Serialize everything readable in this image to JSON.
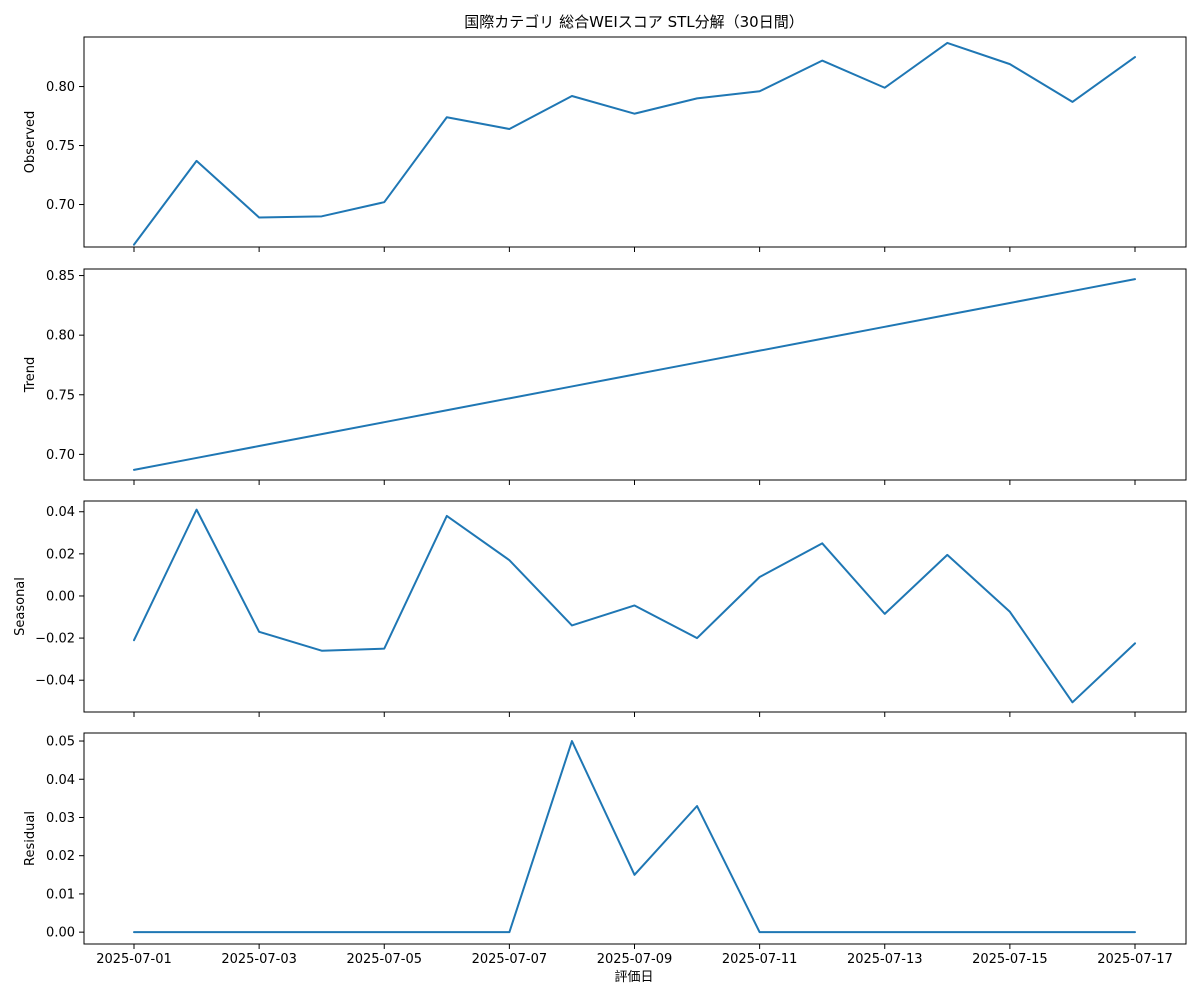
{
  "chart_data": {
    "type": "line",
    "title": "国際カテゴリ 総合WEIスコア STL分解（30日間）",
    "xlabel": "評価日",
    "x": [
      "2025-07-01",
      "2025-07-02",
      "2025-07-03",
      "2025-07-04",
      "2025-07-05",
      "2025-07-06",
      "2025-07-07",
      "2025-07-08",
      "2025-07-09",
      "2025-07-10",
      "2025-07-11",
      "2025-07-12",
      "2025-07-13",
      "2025-07-14",
      "2025-07-15",
      "2025-07-16",
      "2025-07-17"
    ],
    "x_ticks": [
      "2025-07-01",
      "2025-07-03",
      "2025-07-05",
      "2025-07-07",
      "2025-07-09",
      "2025-07-11",
      "2025-07-13",
      "2025-07-15",
      "2025-07-17"
    ],
    "color": "#1f77b4",
    "panels": [
      {
        "ylabel": "Observed",
        "ylim": [
          0.664,
          0.842
        ],
        "yticks": [
          0.7,
          0.75,
          0.8
        ],
        "ytick_labels": [
          "0.70",
          "0.75",
          "0.80"
        ],
        "values": [
          0.666,
          0.737,
          0.689,
          0.69,
          0.702,
          0.774,
          0.764,
          0.792,
          0.777,
          0.79,
          0.796,
          0.822,
          0.799,
          0.837,
          0.819,
          0.787,
          0.825
        ]
      },
      {
        "ylabel": "Trend",
        "ylim": [
          0.6785,
          0.8555
        ],
        "yticks": [
          0.7,
          0.75,
          0.8,
          0.85
        ],
        "ytick_labels": [
          "0.70",
          "0.75",
          "0.80",
          "0.85"
        ],
        "values": [
          0.687,
          0.697,
          0.707,
          0.717,
          0.727,
          0.737,
          0.747,
          0.757,
          0.767,
          0.777,
          0.787,
          0.797,
          0.807,
          0.817,
          0.827,
          0.837,
          0.847
        ]
      },
      {
        "ylabel": "Seasonal",
        "ylim": [
          -0.0551,
          0.0451
        ],
        "yticks": [
          -0.04,
          -0.02,
          0.0,
          0.02,
          0.04
        ],
        "ytick_labels": [
          "−0.04",
          "−0.02",
          "0.00",
          "0.02",
          "0.04"
        ],
        "values": [
          -0.021,
          0.041,
          -0.017,
          -0.026,
          -0.025,
          0.038,
          0.017,
          -0.014,
          -0.0045,
          -0.02,
          0.009,
          0.025,
          -0.0085,
          0.0195,
          -0.0075,
          -0.0505,
          -0.0225
        ]
      },
      {
        "ylabel": "Residual",
        "ylim": [
          -0.0031,
          0.0521
        ],
        "yticks": [
          0.0,
          0.01,
          0.02,
          0.03,
          0.04,
          0.05
        ],
        "ytick_labels": [
          "0.00",
          "0.01",
          "0.02",
          "0.03",
          "0.04",
          "0.05"
        ],
        "values": [
          0,
          0,
          0,
          0,
          0,
          0,
          0,
          0.05,
          0.015,
          0.033,
          0,
          0,
          0,
          0,
          0,
          0,
          0
        ]
      }
    ]
  }
}
